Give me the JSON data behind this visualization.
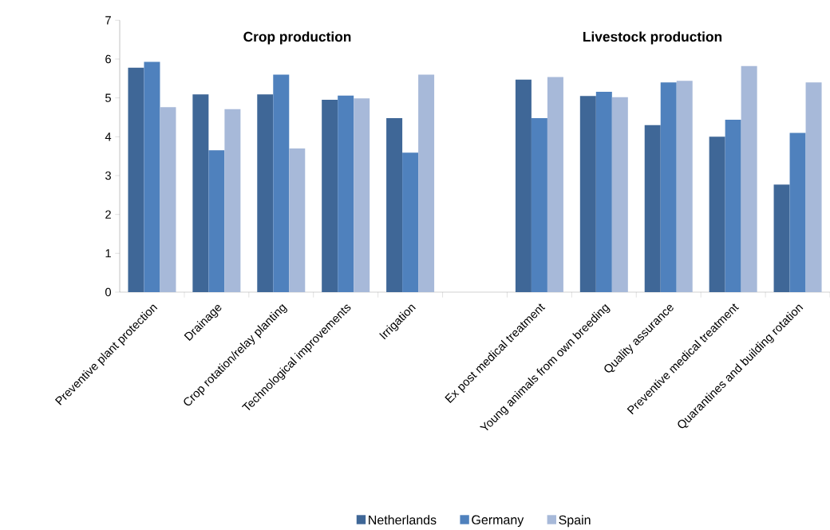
{
  "chart_data": {
    "type": "bar",
    "categories": [
      "Preventive plant protection",
      "Drainage",
      "Crop rotation/relay planting",
      "Technological improvements",
      "Irrigation",
      null,
      "Ex post medical treatment",
      "Young animals  from own breeding",
      "Quality assurance",
      "Preventive medical treatment",
      "Quarantines and building rotation"
    ],
    "series": [
      {
        "name": "Netherlands",
        "color": "#3f6797",
        "values": [
          5.78,
          5.09,
          5.09,
          4.95,
          4.48,
          null,
          5.47,
          5.05,
          4.3,
          4.0,
          2.77
        ]
      },
      {
        "name": "Germany",
        "color": "#4f81bd",
        "values": [
          5.93,
          3.65,
          5.6,
          5.06,
          3.59,
          null,
          4.48,
          5.16,
          5.4,
          4.44,
          4.1
        ]
      },
      {
        "name": "Spain",
        "color": "#a7b9d9",
        "values": [
          4.76,
          4.71,
          3.7,
          4.99,
          5.6,
          null,
          5.54,
          5.02,
          5.44,
          5.82,
          5.4
        ]
      }
    ],
    "ylim": [
      0,
      7
    ],
    "yticks": [
      0,
      1,
      2,
      3,
      4,
      5,
      6,
      7
    ],
    "grid": false,
    "legend": "bottom",
    "annotations": [
      "Crop production",
      "Livestock production"
    ]
  }
}
